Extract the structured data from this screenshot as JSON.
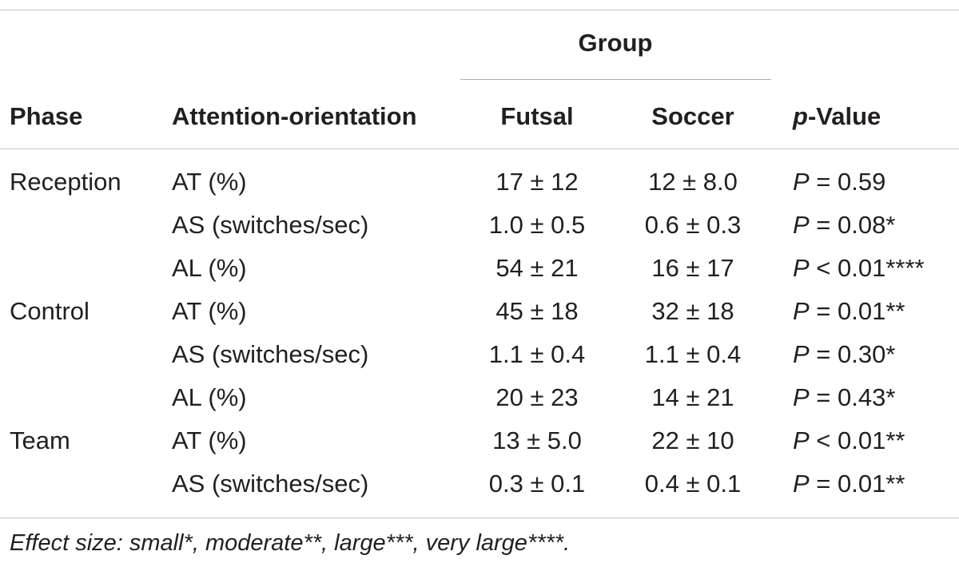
{
  "table": {
    "group_header": "Group",
    "headers": {
      "phase": "Phase",
      "attention": "Attention-orientation",
      "futsal": "Futsal",
      "soccer": "Soccer",
      "p_prefix": "p",
      "p_suffix": "-Value"
    },
    "rows": [
      {
        "phase": "Reception",
        "attention": "AT (%)",
        "futsal": "17 ± 12",
        "soccer": "12 ± 8.0",
        "p_symbol": "P",
        "p_rest": " = 0.59"
      },
      {
        "phase": "",
        "attention": "AS (switches/sec)",
        "futsal": "1.0 ± 0.5",
        "soccer": "0.6 ± 0.3",
        "p_symbol": "P",
        "p_rest": " = 0.08*"
      },
      {
        "phase": "",
        "attention": "AL (%)",
        "futsal": "54 ± 21",
        "soccer": "16 ± 17",
        "p_symbol": "P",
        "p_rest": " < 0.01****"
      },
      {
        "phase": "Control",
        "attention": "AT (%)",
        "futsal": "45 ± 18",
        "soccer": "32 ± 18",
        "p_symbol": "P",
        "p_rest": " = 0.01**"
      },
      {
        "phase": "",
        "attention": "AS (switches/sec)",
        "futsal": "1.1 ± 0.4",
        "soccer": "1.1 ± 0.4",
        "p_symbol": "P",
        "p_rest": " = 0.30*"
      },
      {
        "phase": "",
        "attention": "AL (%)",
        "futsal": "20 ± 23",
        "soccer": "14 ± 21",
        "p_symbol": "P",
        "p_rest": " = 0.43*"
      },
      {
        "phase": "Team",
        "attention": "AT (%)",
        "futsal": "13 ± 5.0",
        "soccer": "22 ± 10",
        "p_symbol": "P",
        "p_rest": " < 0.01**"
      },
      {
        "phase": "",
        "attention": "AS (switches/sec)",
        "futsal": "0.3 ± 0.1",
        "soccer": "0.4 ± 0.1",
        "p_symbol": "P",
        "p_rest": " = 0.01**"
      }
    ],
    "footnote": "Effect size: small*, moderate**, large***, very large****."
  }
}
